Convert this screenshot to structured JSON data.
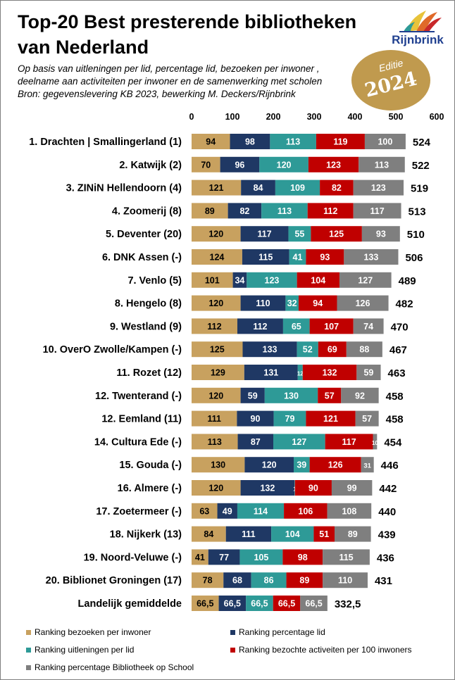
{
  "header": {
    "title": "Top-20 Best presterende bibliotheken van Nederland",
    "subtitle_lines": [
      "Op basis van uitleningen per lid, percentage lid, bezoeken per inwoner ,",
      "deelname aan activiteiten per inwoner en de samenwerking met scholen",
      "Bron: gegevenslevering KB 2023, bewerking M. Deckers/Rijnbrink"
    ],
    "logo_text": "Rijnbrink",
    "badge_edition": "Editie",
    "badge_year": "2024"
  },
  "colors": {
    "bezoeken": "#c8a15f",
    "lid": "#1f3864",
    "uitleningen": "#2e9a97",
    "activiteiten": "#c00000",
    "school": "#7f7f7f"
  },
  "chart_data": {
    "type": "bar",
    "orientation": "horizontal",
    "stacked": true,
    "xlim": [
      0,
      600
    ],
    "xticks": [
      0,
      100,
      200,
      300,
      400,
      500,
      600
    ],
    "grid": false,
    "legend_position": "bottom",
    "categories": [
      "1. Drachten | Smallingerland (1)",
      "2.  Katwijk (2)",
      "3. ZINiN Hellendoorn (4)",
      "4. Zoomerij (8)",
      "5. Deventer (20)",
      "6. DNK Assen (-)",
      "7. Venlo (5)",
      "8. Hengelo (8)",
      "9. Westland (9)",
      "10. OverO Zwolle/Kampen (-)",
      "11. Rozet (12)",
      "12. Twenterand (-)",
      "12. Eemland (11)",
      "14. Cultura Ede (-)",
      "15. Gouda (-)",
      "16. Almere (-)",
      "17. Zoetermeer (-)",
      "18. Nijkerk (13)",
      "19. Noord-Veluwe (-)",
      "20. Biblionet Groningen (17)",
      "Landelijk gemiddelde"
    ],
    "series": [
      {
        "key": "bezoeken",
        "name": "Ranking bezoeken per inwoner",
        "values": [
          94,
          70,
          121,
          89,
          120,
          124,
          101,
          120,
          112,
          125,
          129,
          120,
          111,
          113,
          130,
          120,
          63,
          84,
          41,
          78,
          66.5
        ],
        "labels": [
          "94",
          "70",
          "121",
          "89",
          "120",
          "124",
          "101",
          "120",
          "112",
          "125",
          "129",
          "120",
          "111",
          "113",
          "130",
          "120",
          "63",
          "84",
          "41",
          "78",
          "66,5"
        ]
      },
      {
        "key": "lid",
        "name": "Ranking percentage lid",
        "values": [
          98,
          96,
          84,
          82,
          117,
          115,
          34,
          110,
          112,
          133,
          131,
          59,
          90,
          87,
          120,
          132,
          49,
          111,
          77,
          68,
          66.5
        ],
        "labels": [
          "98",
          "96",
          "84",
          "82",
          "117",
          "115",
          "34",
          "110",
          "112",
          "133",
          "131",
          "59",
          "90",
          "87",
          "120",
          "132",
          "49",
          "111",
          "77",
          "68",
          "66,5"
        ]
      },
      {
        "key": "uitleningen",
        "name": "Ranking uitleningen per lid",
        "values": [
          113,
          120,
          109,
          113,
          55,
          41,
          123,
          32,
          65,
          52,
          12,
          130,
          79,
          127,
          39,
          1,
          114,
          104,
          105,
          86,
          66.5
        ],
        "labels": [
          "113",
          "120",
          "109",
          "113",
          "55",
          "41",
          "123",
          "32",
          "65",
          "52",
          "12",
          "130",
          "79",
          "127",
          "39",
          "1",
          "114",
          "104",
          "105",
          "86",
          "66,5"
        ]
      },
      {
        "key": "activiteiten",
        "name": "Ranking bezochte activeiten per 100 inwoners",
        "values": [
          119,
          123,
          82,
          112,
          125,
          93,
          104,
          94,
          107,
          69,
          132,
          57,
          121,
          117,
          126,
          90,
          106,
          51,
          98,
          89,
          66.5
        ],
        "labels": [
          "119",
          "123",
          "82",
          "112",
          "125",
          "93",
          "104",
          "94",
          "107",
          "69",
          "132",
          "57",
          "121",
          "117",
          "126",
          "90",
          "106",
          "51",
          "98",
          "89",
          "66,5"
        ]
      },
      {
        "key": "school",
        "name": "Ranking percentage Bibliotheek op School",
        "values": [
          100,
          113,
          123,
          117,
          93,
          133,
          127,
          126,
          74,
          88,
          59,
          92,
          57,
          10,
          31,
          99,
          108,
          89,
          115,
          110,
          66.5
        ],
        "labels": [
          "100",
          "113",
          "123",
          "117",
          "93",
          "133",
          "127",
          "126",
          "74",
          "88",
          "59",
          "92",
          "57",
          "10",
          "31",
          "99",
          "108",
          "89",
          "115",
          "110",
          "66,5"
        ]
      }
    ],
    "totals": [
      524,
      522,
      519,
      513,
      510,
      506,
      489,
      482,
      470,
      467,
      463,
      458,
      458,
      454,
      446,
      442,
      440,
      439,
      436,
      431,
      332.5
    ],
    "total_labels": [
      "524",
      "522",
      "519",
      "513",
      "510",
      "506",
      "489",
      "482",
      "470",
      "467",
      "463",
      "458",
      "458",
      "454",
      "446",
      "442",
      "440",
      "439",
      "436",
      "431",
      "332,5"
    ]
  }
}
